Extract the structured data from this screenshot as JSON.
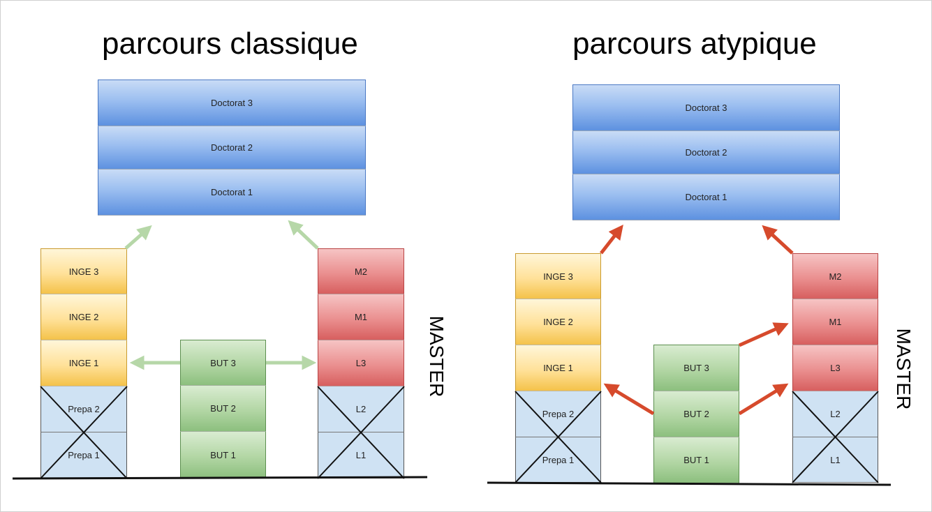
{
  "left": {
    "title": "parcours classique",
    "doctorat": [
      "Doctorat 3",
      "Doctorat 2",
      "Doctorat 1"
    ],
    "inge": [
      "INGE 3",
      "INGE 2",
      "INGE 1"
    ],
    "prepa": [
      "Prepa 2",
      "Prepa 1"
    ],
    "but": [
      "BUT 3",
      "BUT 2",
      "BUT 1"
    ],
    "master": [
      "M2",
      "M1",
      "L3"
    ],
    "licence": [
      "L2",
      "L1"
    ],
    "side_label": "MASTER"
  },
  "right": {
    "title": "parcours atypique",
    "doctorat": [
      "Doctorat 3",
      "Doctorat 2",
      "Doctorat 1"
    ],
    "inge": [
      "INGE 3",
      "INGE 2",
      "INGE 1"
    ],
    "prepa": [
      "Prepa 2",
      "Prepa 1"
    ],
    "but": [
      "BUT 3",
      "BUT 2",
      "BUT 1"
    ],
    "master": [
      "M2",
      "M1",
      "L3"
    ],
    "licence": [
      "L2",
      "L1"
    ],
    "side_label": "MASTER"
  },
  "colors": {
    "arrow_classic": "#b6d7a8",
    "arrow_atypical": "#d64a2c",
    "blue": "#6d9eeb",
    "yellow": "#ffd966",
    "red": "#e06666",
    "green": "#93c47d",
    "light_blue": "#cfe2f3"
  }
}
